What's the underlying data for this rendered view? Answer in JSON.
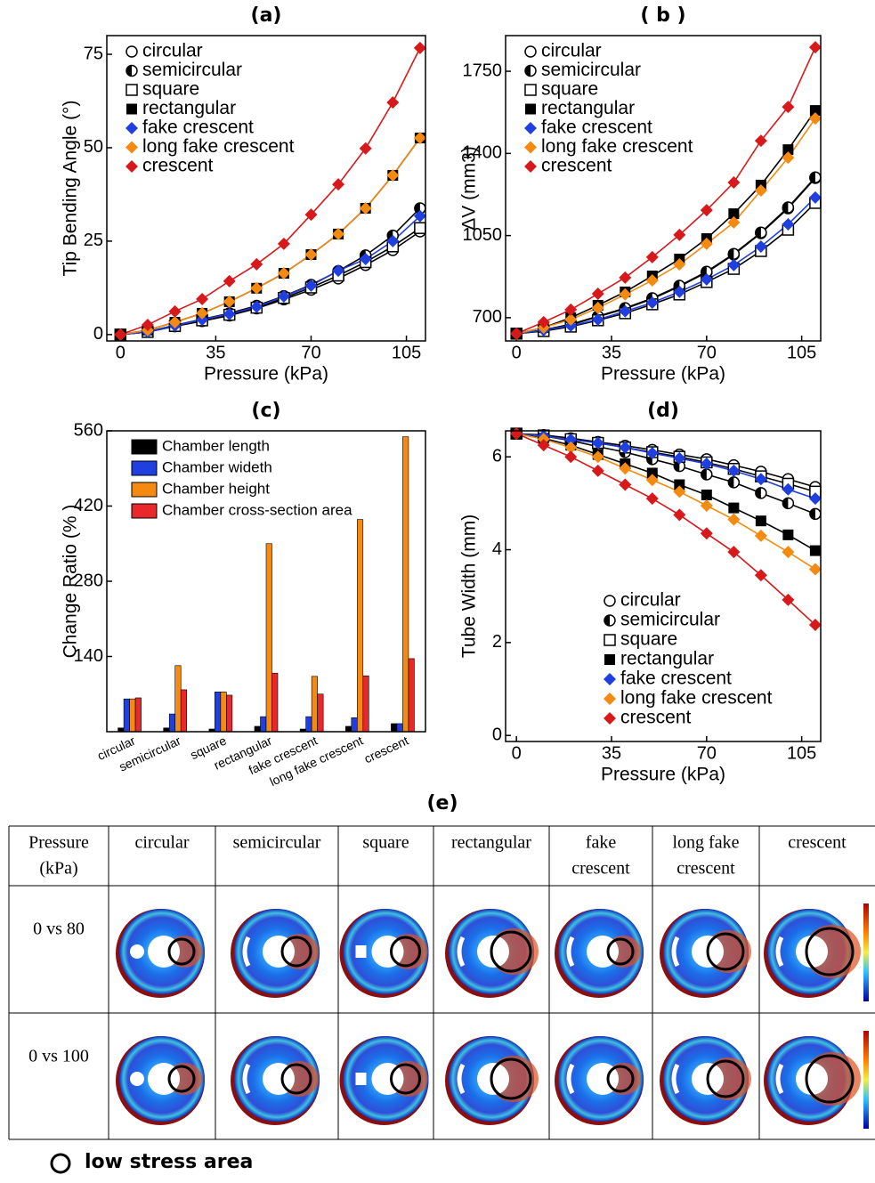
{
  "chart_data": [
    {
      "type": "line",
      "title": "(a)",
      "xlabel": "Pressure (kPa)",
      "ylabel": "Tip Bending Angle (°)",
      "x": [
        0,
        10,
        20,
        30,
        40,
        50,
        60,
        70,
        80,
        90,
        100,
        110
      ],
      "xlim": [
        -5,
        112
      ],
      "xticks": [
        0,
        35,
        70,
        105
      ],
      "ylim": [
        -1.7,
        80
      ],
      "yticks": [
        0,
        25,
        50,
        75
      ],
      "legend": "upper left",
      "series": [
        {
          "name": "circular",
          "color": "#000000",
          "marker": "circle-open",
          "values": [
            0,
            0.7,
            2.2,
            3.6,
            5.1,
            7.0,
            9.4,
            12.0,
            15.0,
            18.6,
            22.6,
            27.6
          ]
        },
        {
          "name": "semicircular",
          "color": "#000000",
          "marker": "circle-half",
          "values": [
            0,
            0.8,
            2.5,
            4.1,
            5.7,
            7.7,
            10.3,
            13.3,
            17.0,
            21.2,
            26.5,
            33.8
          ]
        },
        {
          "name": "square",
          "color": "#000000",
          "marker": "square-open",
          "values": [
            0,
            0.7,
            2.3,
            3.8,
            5.3,
            7.2,
            9.8,
            12.6,
            15.8,
            19.4,
            23.6,
            28.5
          ]
        },
        {
          "name": "rectangular",
          "color": "#000000",
          "marker": "square",
          "values": [
            0,
            1.2,
            3.3,
            5.7,
            8.8,
            12.4,
            16.4,
            21.4,
            26.9,
            33.8,
            42.6,
            52.6
          ]
        },
        {
          "name": "fake crescent",
          "color": "#1f3fe0",
          "marker": "diamond",
          "values": [
            0,
            0.7,
            2.4,
            4.0,
            5.5,
            7.4,
            10.2,
            13.1,
            17.1,
            20.2,
            25.0,
            31.7
          ]
        },
        {
          "name": "long fake crescent",
          "color": "#f48a10",
          "marker": "diamond",
          "values": [
            0,
            1.2,
            3.3,
            5.7,
            8.8,
            12.4,
            16.4,
            21.4,
            26.9,
            33.8,
            42.6,
            52.6
          ]
        },
        {
          "name": "crescent",
          "color": "#d7191c",
          "marker": "diamond",
          "values": [
            0,
            2.6,
            6.2,
            9.5,
            14.3,
            18.8,
            24.3,
            32.1,
            40.2,
            49.8,
            62.1,
            76.7
          ]
        }
      ]
    },
    {
      "type": "line",
      "title": "( b )",
      "xlabel": "Pressure (kPa)",
      "ylabel": "ΔV (mm3)",
      "x": [
        0,
        10,
        20,
        30,
        40,
        50,
        60,
        70,
        80,
        90,
        100,
        110
      ],
      "xlim": [
        -4,
        112
      ],
      "xticks": [
        0,
        35,
        70,
        105
      ],
      "ylim": [
        601,
        1902
      ],
      "yticks": [
        700,
        1050,
        1400,
        1750
      ],
      "legend": "upper left",
      "series": [
        {
          "name": "circular",
          "color": "#000000",
          "marker": "circle-open",
          "values": [
            632,
            647,
            670,
            704,
            738,
            780,
            833,
            893,
            969,
            1060,
            1166,
            1295
          ]
        },
        {
          "name": "semicircular",
          "color": "#000000",
          "marker": "circle-half",
          "values": [
            632,
            648,
            672,
            706,
            741,
            783,
            836,
            896,
            972,
            1063,
            1170,
            1298
          ]
        },
        {
          "name": "square",
          "color": "#000000",
          "marker": "square-open",
          "values": [
            632,
            643,
            662,
            689,
            719,
            757,
            799,
            852,
            908,
            984,
            1075,
            1189
          ]
        },
        {
          "name": "rectangular",
          "color": "#000000",
          "marker": "square",
          "values": [
            632,
            658,
            700,
            753,
            810,
            878,
            950,
            1037,
            1143,
            1265,
            1416,
            1583
          ]
        },
        {
          "name": "fake crescent",
          "color": "#1f3fe0",
          "marker": "diamond",
          "values": [
            632,
            647,
            666,
            692,
            727,
            764,
            810,
            863,
            924,
            1003,
            1098,
            1212
          ]
        },
        {
          "name": "long fake crescent",
          "color": "#f48a10",
          "marker": "diamond",
          "values": [
            632,
            658,
            692,
            742,
            799,
            859,
            927,
            1015,
            1106,
            1242,
            1382,
            1549
          ]
        },
        {
          "name": "crescent",
          "color": "#d7191c",
          "marker": "diamond",
          "values": [
            632,
            681,
            734,
            802,
            871,
            958,
            1053,
            1158,
            1276,
            1454,
            1598,
            1852
          ]
        }
      ]
    },
    {
      "type": "bar",
      "title": "(c)",
      "ylabel": "Change Ratio (% )",
      "categories": [
        "circular",
        "semicircular",
        "square",
        "rectangular",
        "fake crescent",
        "long fake crescent",
        "crescent"
      ],
      "ylim": [
        0,
        560
      ],
      "yticks": [
        140,
        280,
        420,
        560
      ],
      "legend": "upper left",
      "series": [
        {
          "name": "Chamber length",
          "color": "#000000",
          "values": [
            7,
            7,
            5,
            10,
            5,
            10,
            15
          ]
        },
        {
          "name": "Chamber wideth",
          "color": "#1f3fe0",
          "values": [
            61,
            33,
            74,
            28,
            28,
            26,
            15
          ]
        },
        {
          "name": "Chamber height",
          "color": "#f48a10",
          "values": [
            61,
            123,
            74,
            350,
            103,
            395,
            549
          ]
        },
        {
          "name": "Chamber cross-section area",
          "color": "#e8282b",
          "values": [
            63,
            78,
            68,
            109,
            70,
            104,
            136
          ]
        }
      ]
    },
    {
      "type": "line",
      "title": "(d)",
      "xlabel": "Pressure (kPa)",
      "ylabel": "Tube Width (mm)",
      "x": [
        0,
        10,
        20,
        30,
        40,
        50,
        60,
        70,
        80,
        90,
        100,
        110
      ],
      "xlim": [
        -4,
        112
      ],
      "xticks": [
        0,
        35,
        70,
        105
      ],
      "ylim": [
        -0.13,
        6.56
      ],
      "yticks": [
        0,
        2,
        4,
        6
      ],
      "legend": "lower left",
      "series": [
        {
          "name": "circular",
          "color": "#000000",
          "marker": "circle-open",
          "values": [
            6.5,
            6.47,
            6.4,
            6.32,
            6.24,
            6.15,
            6.05,
            5.95,
            5.82,
            5.68,
            5.52,
            5.35
          ]
        },
        {
          "name": "semicircular",
          "color": "#000000",
          "marker": "circle-half",
          "values": [
            6.5,
            6.45,
            6.35,
            6.22,
            6.1,
            5.95,
            5.8,
            5.62,
            5.45,
            5.22,
            5.0,
            4.77
          ]
        },
        {
          "name": "square",
          "color": "#000000",
          "marker": "square-open",
          "values": [
            6.5,
            6.46,
            6.38,
            6.3,
            6.2,
            6.1,
            6.0,
            5.88,
            5.74,
            5.58,
            5.42,
            5.25
          ]
        },
        {
          "name": "rectangular",
          "color": "#000000",
          "marker": "square",
          "values": [
            6.5,
            6.4,
            6.25,
            6.05,
            5.85,
            5.65,
            5.4,
            5.18,
            4.9,
            4.62,
            4.32,
            3.98
          ]
        },
        {
          "name": "fake crescent",
          "color": "#1f3fe0",
          "marker": "diamond",
          "values": [
            6.5,
            6.45,
            6.37,
            6.3,
            6.2,
            6.08,
            5.97,
            5.85,
            5.7,
            5.52,
            5.3,
            5.1
          ]
        },
        {
          "name": "long fake crescent",
          "color": "#f48a10",
          "marker": "diamond",
          "values": [
            6.5,
            6.38,
            6.2,
            6.0,
            5.75,
            5.5,
            5.25,
            4.95,
            4.65,
            4.3,
            3.95,
            3.58
          ]
        },
        {
          "name": "crescent",
          "color": "#d7191c",
          "marker": "diamond",
          "values": [
            6.5,
            6.25,
            6.0,
            5.7,
            5.4,
            5.1,
            4.75,
            4.35,
            3.95,
            3.45,
            2.92,
            2.38
          ]
        }
      ]
    }
  ],
  "panel_e": {
    "title": "(e)",
    "header": [
      [
        "Pressure",
        "(kPa)"
      ],
      [
        "circular"
      ],
      [
        "semicircular"
      ],
      [
        "square"
      ],
      [
        "rectangular"
      ],
      [
        "fake",
        "crescent"
      ],
      [
        "long fake",
        "crescent"
      ],
      [
        "crescent"
      ]
    ],
    "rows": [
      "0 vs 80",
      "0 vs 100"
    ],
    "note": "low stress area"
  }
}
